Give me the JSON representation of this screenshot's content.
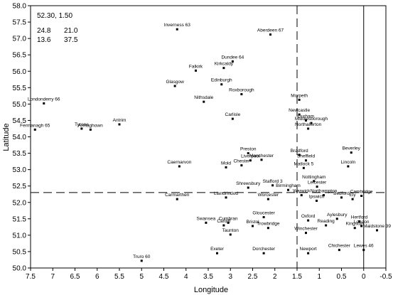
{
  "chart_data": {
    "type": "scatter",
    "xlabel": "Longitude",
    "ylabel": "Latitude",
    "xlim": [
      7.5,
      -0.5
    ],
    "ylim": [
      50.0,
      58.0
    ],
    "x_reversed": true,
    "x_ticks": [
      "7.5",
      "7",
      "6.5",
      "6",
      "5.5",
      "5",
      "4.5",
      "4",
      "3.5",
      "3",
      "2.5",
      "2",
      "1.5",
      "1",
      "0.5",
      "0",
      "-0.5"
    ],
    "y_ticks": [
      "50.0",
      "50.5",
      "51.0",
      "51.5",
      "52.0",
      "52.5",
      "53.0",
      "53.5",
      "54.0",
      "54.5",
      "55.0",
      "55.5",
      "56.0",
      "56.5",
      "57.0",
      "57.5",
      "58.0"
    ],
    "grid": false,
    "reference_lines": {
      "vertical_dashed_x": 1.5,
      "horizontal_dashed_y": 52.3,
      "vertical_solid_x": 0.0
    },
    "corner_text": {
      "line1": "52.30, 1.50",
      "line2_left": "24.8",
      "line2_right": "21.0",
      "line3_left": "13.6",
      "line3_right": "37.5"
    },
    "points": [
      {
        "label": "Inverness 63",
        "x": 4.2,
        "y": 57.28
      },
      {
        "label": "Aberdeen 67",
        "x": 2.1,
        "y": 57.12
      },
      {
        "label": "Dundee 64",
        "x": 2.95,
        "y": 56.3
      },
      {
        "label": "Kirkcaldy",
        "x": 3.15,
        "y": 56.1
      },
      {
        "label": "Falkirk",
        "x": 3.78,
        "y": 56.02
      },
      {
        "label": "Edinburgh",
        "x": 3.2,
        "y": 55.6
      },
      {
        "label": "Glasgow",
        "x": 4.25,
        "y": 55.55
      },
      {
        "label": "Roxborough",
        "x": 2.75,
        "y": 55.3
      },
      {
        "label": "Nithsdale",
        "x": 3.6,
        "y": 55.07
      },
      {
        "label": "Morpeth",
        "x": 1.45,
        "y": 55.13
      },
      {
        "label": "Londonderry 66",
        "x": 7.2,
        "y": 55.02
      },
      {
        "label": "Carlisle",
        "x": 2.95,
        "y": 54.55
      },
      {
        "label": "Newcastle",
        "x": 1.45,
        "y": 54.68
      },
      {
        "label": "Durham",
        "x": 1.3,
        "y": 54.5
      },
      {
        "label": "Middlesborough",
        "x": 1.18,
        "y": 54.42
      },
      {
        "label": "Northallerton",
        "x": 1.25,
        "y": 54.25
      },
      {
        "label": "Tyrone",
        "x": 6.35,
        "y": 54.25
      },
      {
        "label": "Armaghown",
        "x": 6.15,
        "y": 54.22
      },
      {
        "label": "Antrim",
        "x": 5.5,
        "y": 54.38
      },
      {
        "label": "Fermanagh 65",
        "x": 7.4,
        "y": 54.22
      },
      {
        "label": "Preston",
        "x": 2.6,
        "y": 53.5
      },
      {
        "label": "Bradford",
        "x": 1.45,
        "y": 53.45
      },
      {
        "label": "Beverley",
        "x": 0.28,
        "y": 53.52
      },
      {
        "label": "Manchester",
        "x": 2.3,
        "y": 53.3
      },
      {
        "label": "Liverpool",
        "x": 2.55,
        "y": 53.28
      },
      {
        "label": "Chester",
        "x": 2.75,
        "y": 53.13
      },
      {
        "label": "Sheffield",
        "x": 1.3,
        "y": 53.28
      },
      {
        "label": "Matlock 5",
        "x": 1.35,
        "y": 53.05
      },
      {
        "label": "Lincoln",
        "x": 0.35,
        "y": 53.1
      },
      {
        "label": "Caernarvon",
        "x": 4.15,
        "y": 53.1
      },
      {
        "label": "Mold",
        "x": 3.1,
        "y": 53.07
      },
      {
        "label": "Nottingham",
        "x": 1.12,
        "y": 52.65
      },
      {
        "label": "Leicester",
        "x": 1.05,
        "y": 52.48
      },
      {
        "label": "Stafford 3",
        "x": 2.05,
        "y": 52.52
      },
      {
        "label": "Shrewsbury",
        "x": 2.6,
        "y": 52.45
      },
      {
        "label": "Birmingham",
        "x": 1.7,
        "y": 52.38
      },
      {
        "label": "Warwick",
        "x": 1.4,
        "y": 52.22
      },
      {
        "label": "Ipswich",
        "x": 1.06,
        "y": 52.05
      },
      {
        "label": "Northampton",
        "x": 0.9,
        "y": 52.22
      },
      {
        "label": "Bedford",
        "x": 0.5,
        "y": 52.15
      },
      {
        "label": "Cambridge",
        "x": 0.05,
        "y": 52.2
      },
      {
        "label": "Ely",
        "x": 0.25,
        "y": 52.1
      },
      {
        "label": "Worcester",
        "x": 2.15,
        "y": 52.1
      },
      {
        "label": "Llandrindod",
        "x": 3.1,
        "y": 52.15
      },
      {
        "label": "Carmarthen",
        "x": 4.2,
        "y": 52.1
      },
      {
        "label": "Gloucester",
        "x": 2.25,
        "y": 51.55
      },
      {
        "label": "Oxford",
        "x": 1.25,
        "y": 51.45
      },
      {
        "label": "Aylesbury",
        "x": 0.6,
        "y": 51.5
      },
      {
        "label": "Hertford",
        "x": 0.1,
        "y": 51.42
      },
      {
        "label": "Swansea",
        "x": 3.55,
        "y": 51.38
      },
      {
        "label": "Cumbran",
        "x": 3.05,
        "y": 51.38
      },
      {
        "label": "Cardiff",
        "x": 3.15,
        "y": 51.3
      },
      {
        "label": "Bristol",
        "x": 2.5,
        "y": 51.28
      },
      {
        "label": "Trowbridge",
        "x": 2.15,
        "y": 51.22
      },
      {
        "label": "Reading",
        "x": 0.85,
        "y": 51.3
      },
      {
        "label": "London",
        "x": 0.05,
        "y": 51.28
      },
      {
        "label": "Maidstone 39",
        "x": -0.3,
        "y": 51.15
      },
      {
        "label": "Kingston",
        "x": 0.2,
        "y": 51.22
      },
      {
        "label": "Taunton",
        "x": 3.0,
        "y": 51.02
      },
      {
        "label": "Winchester",
        "x": 1.3,
        "y": 51.07
      },
      {
        "label": "Exeter",
        "x": 3.3,
        "y": 50.45
      },
      {
        "label": "Dorchester",
        "x": 2.25,
        "y": 50.45
      },
      {
        "label": "Newport",
        "x": 1.25,
        "y": 50.45
      },
      {
        "label": "Chichester",
        "x": 0.55,
        "y": 50.55
      },
      {
        "label": "Lewes 46",
        "x": 0.0,
        "y": 50.55
      },
      {
        "label": "Truro 60",
        "x": 5.0,
        "y": 50.22
      }
    ]
  }
}
